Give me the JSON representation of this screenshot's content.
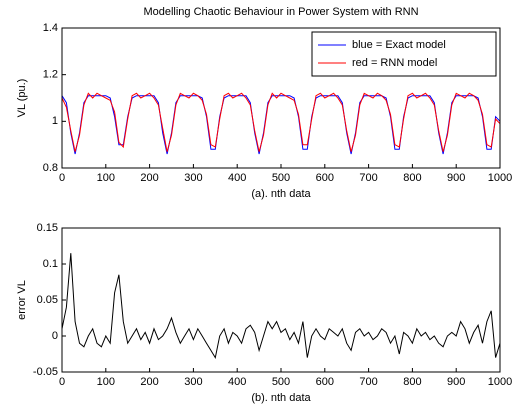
{
  "chart_data": [
    {
      "type": "line",
      "title": "Modelling Chaotic Behaviour in Power System with RNN",
      "x_label": "(a).  nth data",
      "y_label": "VL (pu.)",
      "x": [
        0,
        10,
        20,
        30,
        40,
        50,
        60,
        70,
        80,
        90,
        100,
        110,
        120,
        130,
        140,
        150,
        160,
        170,
        180,
        190,
        200,
        210,
        220,
        230,
        240,
        250,
        260,
        270,
        280,
        290,
        300,
        310,
        320,
        330,
        340,
        350,
        360,
        370,
        380,
        390,
        400,
        410,
        420,
        430,
        440,
        450,
        460,
        470,
        480,
        490,
        500,
        510,
        520,
        530,
        540,
        550,
        560,
        570,
        580,
        590,
        600,
        610,
        620,
        630,
        640,
        650,
        660,
        670,
        680,
        690,
        700,
        710,
        720,
        730,
        740,
        750,
        760,
        770,
        780,
        790,
        800,
        810,
        820,
        830,
        840,
        850,
        860,
        870,
        880,
        890,
        900,
        910,
        920,
        930,
        940,
        950,
        960,
        970,
        980,
        990,
        1000
      ],
      "series": [
        {
          "name": "blue = Exact model",
          "color": "#0000ff",
          "values": [
            1.11,
            1.08,
            0.95,
            0.86,
            0.95,
            1.08,
            1.11,
            1.11,
            1.11,
            1.11,
            1.11,
            1.1,
            1.02,
            0.9,
            0.9,
            1.02,
            1.1,
            1.11,
            1.11,
            1.11,
            1.11,
            1.11,
            1.08,
            0.95,
            0.86,
            0.95,
            1.08,
            1.11,
            1.11,
            1.11,
            1.11,
            1.11,
            1.1,
            1.02,
            0.88,
            0.88,
            1.02,
            1.1,
            1.11,
            1.11,
            1.11,
            1.11,
            1.11,
            1.08,
            0.95,
            0.86,
            0.95,
            1.08,
            1.11,
            1.11,
            1.11,
            1.11,
            1.11,
            1.1,
            1.02,
            0.88,
            0.88,
            1.02,
            1.1,
            1.11,
            1.11,
            1.11,
            1.11,
            1.11,
            1.08,
            0.95,
            0.86,
            0.95,
            1.08,
            1.11,
            1.11,
            1.11,
            1.11,
            1.11,
            1.1,
            1.02,
            0.88,
            0.88,
            1.02,
            1.1,
            1.11,
            1.11,
            1.11,
            1.11,
            1.11,
            1.08,
            0.95,
            0.86,
            0.95,
            1.08,
            1.11,
            1.11,
            1.11,
            1.11,
            1.11,
            1.1,
            1.02,
            0.88,
            0.88,
            1.02,
            1.0
          ]
        },
        {
          "name": "red = RNN model",
          "color": "#ff0000",
          "values": [
            1.1,
            1.06,
            0.96,
            0.87,
            0.94,
            1.07,
            1.12,
            1.1,
            1.12,
            1.11,
            1.1,
            1.09,
            1.04,
            0.91,
            0.89,
            1.01,
            1.11,
            1.12,
            1.1,
            1.11,
            1.12,
            1.1,
            1.07,
            0.97,
            0.87,
            0.94,
            1.07,
            1.12,
            1.11,
            1.1,
            1.12,
            1.11,
            1.09,
            1.03,
            0.9,
            0.89,
            1.01,
            1.11,
            1.12,
            1.1,
            1.11,
            1.12,
            1.1,
            1.07,
            0.96,
            0.87,
            0.94,
            1.07,
            1.12,
            1.1,
            1.12,
            1.11,
            1.1,
            1.09,
            1.03,
            0.9,
            0.9,
            1.01,
            1.11,
            1.12,
            1.1,
            1.11,
            1.12,
            1.1,
            1.07,
            0.96,
            0.87,
            0.94,
            1.07,
            1.12,
            1.11,
            1.1,
            1.12,
            1.11,
            1.09,
            1.03,
            0.9,
            0.89,
            1.01,
            1.11,
            1.12,
            1.1,
            1.11,
            1.12,
            1.1,
            1.07,
            0.96,
            0.87,
            0.94,
            1.07,
            1.12,
            1.11,
            1.1,
            1.12,
            1.11,
            1.09,
            1.03,
            0.9,
            0.89,
            1.01,
            0.99
          ]
        }
      ],
      "xlim": [
        0,
        1000
      ],
      "xticks": [
        0,
        100,
        200,
        300,
        400,
        500,
        600,
        700,
        800,
        900,
        1000
      ],
      "ylim": [
        0.8,
        1.4
      ],
      "yticks": [
        0.8,
        1,
        1.2,
        1.4
      ],
      "legend": "upper right"
    },
    {
      "type": "line",
      "x_label": "(b).  nth data",
      "y_label": "error VL",
      "x": [
        0,
        10,
        20,
        30,
        40,
        50,
        60,
        70,
        80,
        90,
        100,
        110,
        120,
        130,
        140,
        150,
        160,
        170,
        180,
        190,
        200,
        210,
        220,
        230,
        240,
        250,
        260,
        270,
        280,
        290,
        300,
        310,
        320,
        330,
        340,
        350,
        360,
        370,
        380,
        390,
        400,
        410,
        420,
        430,
        440,
        450,
        460,
        470,
        480,
        490,
        500,
        510,
        520,
        530,
        540,
        550,
        560,
        570,
        580,
        590,
        600,
        610,
        620,
        630,
        640,
        650,
        660,
        670,
        680,
        690,
        700,
        710,
        720,
        730,
        740,
        750,
        760,
        770,
        780,
        790,
        800,
        810,
        820,
        830,
        840,
        850,
        860,
        870,
        880,
        890,
        900,
        910,
        920,
        930,
        940,
        950,
        960,
        970,
        980,
        990,
        1000
      ],
      "series": [
        {
          "color": "#000000",
          "values": [
            0.01,
            0.04,
            0.115,
            0.02,
            -0.01,
            -0.015,
            0.0,
            0.01,
            -0.01,
            -0.015,
            0.0,
            -0.01,
            0.06,
            0.085,
            0.02,
            -0.01,
            0.0,
            0.01,
            -0.005,
            0.005,
            -0.01,
            0.01,
            -0.005,
            0.0,
            0.01,
            0.025,
            0.005,
            -0.01,
            0.0,
            0.01,
            -0.005,
            0.01,
            0.0,
            -0.01,
            -0.02,
            -0.03,
            0.0,
            0.01,
            -0.01,
            0.005,
            0.0,
            -0.01,
            0.01,
            0.015,
            0.005,
            -0.02,
            0.0,
            0.02,
            0.01,
            0.02,
            0.005,
            0.01,
            -0.005,
            0.005,
            -0.01,
            0.02,
            -0.03,
            0.0,
            0.01,
            0.0,
            -0.005,
            0.01,
            0.005,
            0.0,
            0.01,
            -0.01,
            -0.02,
            0.005,
            0.01,
            0.0,
            0.005,
            -0.005,
            0.0,
            0.01,
            0.005,
            -0.01,
            0.0,
            -0.025,
            0.005,
            0.0,
            -0.01,
            0.01,
            0.0,
            0.005,
            -0.005,
            0.0,
            -0.01,
            -0.015,
            0.0,
            0.005,
            0.0,
            0.02,
            0.01,
            -0.01,
            0.005,
            0.015,
            -0.01,
            0.02,
            0.035,
            -0.03,
            -0.01
          ]
        }
      ],
      "xlim": [
        0,
        1000
      ],
      "xticks": [
        0,
        100,
        200,
        300,
        400,
        500,
        600,
        700,
        800,
        900,
        1000
      ],
      "ylim": [
        -0.05,
        0.15
      ],
      "yticks": [
        -0.05,
        0,
        0.05,
        0.1,
        0.15
      ]
    }
  ]
}
